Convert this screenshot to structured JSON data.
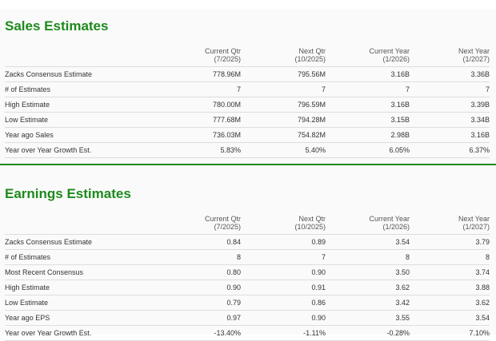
{
  "sales": {
    "title": "Sales Estimates",
    "columns": [
      {
        "label": "Current Qtr",
        "period": "(7/2025)"
      },
      {
        "label": "Next Qtr",
        "period": "(10/2025)"
      },
      {
        "label": "Current Year",
        "period": "(1/2026)"
      },
      {
        "label": "Next Year",
        "period": "(1/2027)"
      }
    ],
    "rows": [
      {
        "label": "Zacks Consensus Estimate",
        "values": [
          "778.96M",
          "795.56M",
          "3.16B",
          "3.36B"
        ]
      },
      {
        "label": "# of Estimates",
        "values": [
          "7",
          "7",
          "7",
          "7"
        ]
      },
      {
        "label": "High Estimate",
        "values": [
          "780.00M",
          "796.59M",
          "3.16B",
          "3.39B"
        ]
      },
      {
        "label": "Low Estimate",
        "values": [
          "777.68M",
          "794.28M",
          "3.15B",
          "3.34B"
        ]
      },
      {
        "label": "Year ago Sales",
        "values": [
          "736.03M",
          "754.82M",
          "2.98B",
          "3.16B"
        ]
      },
      {
        "label": "Year over Year Growth Est.",
        "values": [
          "5.83%",
          "5.40%",
          "6.05%",
          "6.37%"
        ]
      }
    ]
  },
  "earnings": {
    "title": "Earnings Estimates",
    "columns": [
      {
        "label": "Current Qtr",
        "period": "(7/2025)"
      },
      {
        "label": "Next Qtr",
        "period": "(10/2025)"
      },
      {
        "label": "Current Year",
        "period": "(1/2026)"
      },
      {
        "label": "Next Year",
        "period": "(1/2027)"
      }
    ],
    "rows": [
      {
        "label": "Zacks Consensus Estimate",
        "values": [
          "0.84",
          "0.89",
          "3.54",
          "3.79"
        ]
      },
      {
        "label": "# of Estimates",
        "values": [
          "8",
          "7",
          "8",
          "8"
        ]
      },
      {
        "label": "Most Recent Consensus",
        "values": [
          "0.80",
          "0.90",
          "3.50",
          "3.74"
        ]
      },
      {
        "label": "High Estimate",
        "values": [
          "0.90",
          "0.91",
          "3.62",
          "3.88"
        ]
      },
      {
        "label": "Low Estimate",
        "values": [
          "0.79",
          "0.86",
          "3.42",
          "3.62"
        ]
      },
      {
        "label": "Year ago EPS",
        "values": [
          "0.97",
          "0.90",
          "3.55",
          "3.54"
        ]
      },
      {
        "label": "Year over Year Growth Est.",
        "values": [
          "-13.40%",
          "-1.11%",
          "-0.28%",
          "7.10%"
        ]
      }
    ]
  },
  "colors": {
    "accent_green": "#1d8a1d",
    "panel_bg": "#fafafa",
    "row_border": "#dddddd"
  }
}
